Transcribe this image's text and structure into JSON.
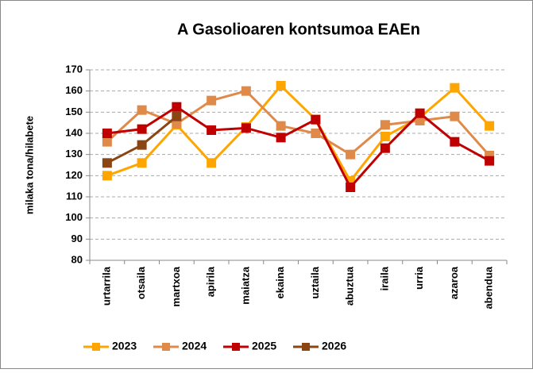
{
  "chart_data": {
    "type": "line",
    "title": "A Gasolioaren kontsumoa EAEn",
    "y_label": "milaka tona/hilabete",
    "categories": [
      "urtarrila",
      "otsaila",
      "martxoa",
      "apirila",
      "maiatza",
      "ekaina",
      "uztaila",
      "abuztua",
      "iraila",
      "urria",
      "azaroa",
      "abendua"
    ],
    "series": [
      {
        "name": "2023",
        "color": "#ffa500",
        "values": [
          120,
          126,
          144,
          126,
          143,
          162.5,
          146.5,
          117.5,
          138.5,
          147.5,
          161.5,
          143.5
        ]
      },
      {
        "name": "2024",
        "color": "#e08a4a",
        "values": [
          136,
          151,
          144.5,
          155.5,
          160,
          143.5,
          140,
          130,
          144,
          146,
          148,
          129.5
        ]
      },
      {
        "name": "2025",
        "color": "#c00000",
        "values": [
          140,
          142,
          152.5,
          141.5,
          142.5,
          138,
          146.5,
          114.5,
          133,
          149.5,
          136,
          127
        ]
      },
      {
        "name": "2026",
        "color": "#8b4513",
        "values": [
          126,
          134.5,
          148,
          null,
          null,
          null,
          null,
          null,
          null,
          null,
          null,
          null
        ]
      }
    ],
    "ylim": [
      80,
      170
    ],
    "yticks": [
      80,
      90,
      100,
      110,
      120,
      130,
      140,
      150,
      160,
      170
    ],
    "grid": true
  }
}
